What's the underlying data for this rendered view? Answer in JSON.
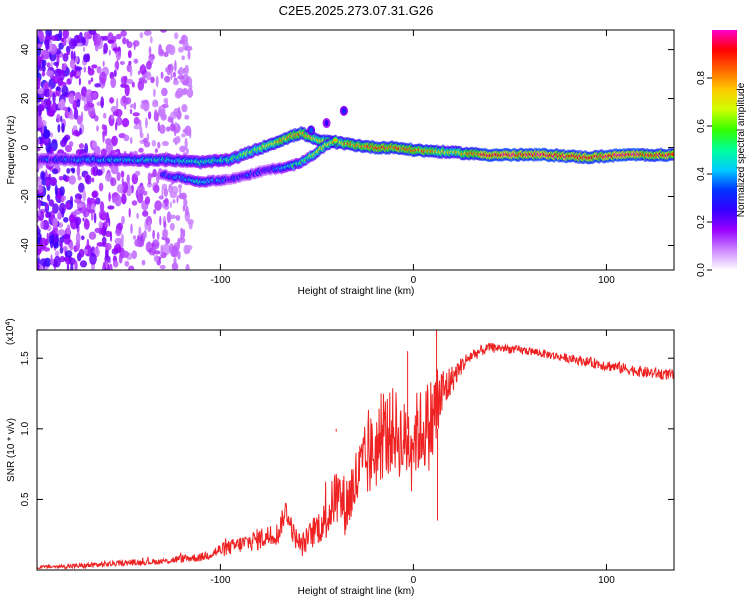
{
  "title": "C2E5.2025.273.07.31.G26",
  "chart_data": [
    {
      "type": "heatmap",
      "name": "spectrogram",
      "xlabel": "Height of straight line (km)",
      "ylabel": "Frequency (Hz)",
      "xlim": [
        -195,
        135
      ],
      "ylim": [
        -50,
        48
      ],
      "xticks": [
        -100,
        0,
        100
      ],
      "yticks": [
        -40,
        -20,
        0,
        20,
        40
      ],
      "colorbar": {
        "label": "Normalized spectral amplitude",
        "range": [
          0,
          1
        ],
        "ticks": [
          "0.0",
          "0.2",
          "0.4",
          "0.6",
          "0.8"
        ],
        "colors": [
          "#ffffff",
          "#cc88ff",
          "#9900ff",
          "#3300ff",
          "#0033ff",
          "#00ccff",
          "#00ff99",
          "#33ff00",
          "#ccff00",
          "#ffcc00",
          "#ff6600",
          "#ff0000",
          "#ff00cc"
        ]
      },
      "main_track": [
        {
          "x": -195,
          "y": -5,
          "a": 0.3
        },
        {
          "x": -160,
          "y": -5,
          "a": 0.4
        },
        {
          "x": -130,
          "y": -5,
          "a": 0.45
        },
        {
          "x": -110,
          "y": -6,
          "a": 0.5
        },
        {
          "x": -95,
          "y": -5,
          "a": 0.55
        },
        {
          "x": -85,
          "y": -2,
          "a": 0.6
        },
        {
          "x": -75,
          "y": 1,
          "a": 0.7
        },
        {
          "x": -65,
          "y": 4,
          "a": 0.8
        },
        {
          "x": -58,
          "y": 6,
          "a": 0.8
        },
        {
          "x": -50,
          "y": 3,
          "a": 0.7
        },
        {
          "x": -40,
          "y": 2,
          "a": 0.75
        },
        {
          "x": -30,
          "y": 1,
          "a": 0.8
        },
        {
          "x": -20,
          "y": 0,
          "a": 0.85
        },
        {
          "x": -10,
          "y": 0,
          "a": 0.85
        },
        {
          "x": 0,
          "y": -1,
          "a": 0.85
        },
        {
          "x": 20,
          "y": -2,
          "a": 0.7
        },
        {
          "x": 40,
          "y": -3,
          "a": 0.95
        },
        {
          "x": 70,
          "y": -3,
          "a": 0.95
        },
        {
          "x": 90,
          "y": -4,
          "a": 0.9
        },
        {
          "x": 110,
          "y": -3,
          "a": 0.95
        },
        {
          "x": 135,
          "y": -3,
          "a": 0.9
        }
      ],
      "secondary_track": [
        {
          "x": -130,
          "y": -11,
          "a": 0.3
        },
        {
          "x": -110,
          "y": -14,
          "a": 0.45
        },
        {
          "x": -95,
          "y": -13,
          "a": 0.3
        },
        {
          "x": -75,
          "y": -9,
          "a": 0.3
        },
        {
          "x": -65,
          "y": -8,
          "a": 0.5
        },
        {
          "x": -58,
          "y": -6,
          "a": 0.55
        },
        {
          "x": -50,
          "y": -2,
          "a": 0.7
        },
        {
          "x": -45,
          "y": 1,
          "a": 0.75
        },
        {
          "x": -40,
          "y": 3,
          "a": 0.7
        }
      ],
      "isolated_blobs": [
        {
          "x": -36,
          "y": 15,
          "a": 0.3
        },
        {
          "x": -45,
          "y": 10,
          "a": 0.25
        },
        {
          "x": -53,
          "y": 7,
          "a": 0.35
        }
      ]
    },
    {
      "type": "line",
      "name": "snr",
      "xlabel": "Height of straight line (km)",
      "ylabel": "SNR (10 * v/v)",
      "y_multiplier": "(x10^4)",
      "xlim": [
        -195,
        135
      ],
      "ylim": [
        0,
        1.7
      ],
      "xticks": [
        -100,
        0,
        100
      ],
      "yticks": [
        0.5,
        1.0,
        1.5
      ],
      "color": "#ee2222",
      "series": [
        {
          "name": "SNR",
          "x": [
            -195,
            -170,
            -150,
            -130,
            -120,
            -110,
            -100,
            -90,
            -80,
            -70,
            -66,
            -62,
            -58,
            -50,
            -45,
            -40,
            -35,
            -30,
            -25,
            -20,
            -15,
            -10,
            -5,
            0,
            5,
            10,
            12,
            15,
            20,
            25,
            30,
            40,
            60,
            80,
            100,
            120,
            135
          ],
          "values": [
            0.02,
            0.03,
            0.05,
            0.06,
            0.08,
            0.09,
            0.14,
            0.18,
            0.22,
            0.26,
            0.43,
            0.25,
            0.17,
            0.3,
            0.35,
            0.55,
            0.45,
            0.62,
            0.75,
            0.85,
            0.95,
            1.0,
            0.9,
            0.95,
            1.0,
            1.05,
            1.15,
            1.25,
            1.35,
            1.45,
            1.52,
            1.58,
            1.55,
            1.5,
            1.45,
            1.4,
            1.38
          ],
          "noise": [
            0.01,
            0.02,
            0.02,
            0.02,
            0.03,
            0.03,
            0.05,
            0.06,
            0.08,
            0.08,
            0.08,
            0.08,
            0.08,
            0.12,
            0.15,
            0.2,
            0.22,
            0.25,
            0.28,
            0.3,
            0.3,
            0.3,
            0.3,
            0.3,
            0.3,
            0.35,
            0.35,
            0.2,
            0.1,
            0.06,
            0.05,
            0.03,
            0.03,
            0.03,
            0.04,
            0.04,
            0.04
          ]
        }
      ],
      "spikes": [
        {
          "x": 12,
          "y": 1.7
        },
        {
          "x": 12.5,
          "y": 0.35
        },
        {
          "x": -3,
          "y": 1.55
        },
        {
          "x": -40,
          "y": 0.98
        }
      ]
    }
  ]
}
